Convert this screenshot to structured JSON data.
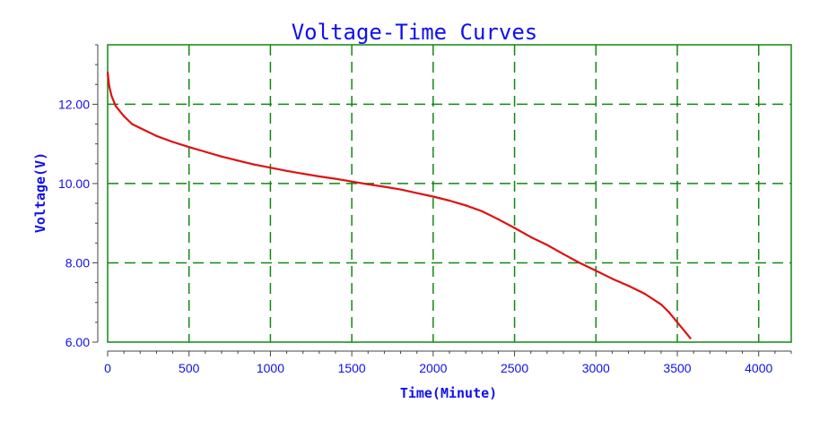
{
  "chart_data": {
    "type": "line",
    "title": "Voltage-Time Curves",
    "xlabel": "Time(Minute)",
    "ylabel": "Voltage(V)",
    "xlim": [
      0,
      4200
    ],
    "ylim": [
      6.0,
      13.5
    ],
    "x_ticks": [
      0,
      500,
      1000,
      1500,
      2000,
      2500,
      3000,
      3500,
      4000
    ],
    "x_tick_labels": [
      "0",
      "500",
      "1000",
      "1500",
      "2000",
      "2500",
      "3000",
      "3500",
      "4000"
    ],
    "y_ticks": [
      6,
      8,
      10,
      12
    ],
    "y_tick_labels": [
      "6.00",
      "8.00",
      "10.00",
      "12.00"
    ],
    "grid": true,
    "series": [
      {
        "x": [
          0,
          10,
          25,
          50,
          100,
          150,
          200,
          300,
          400,
          500,
          600,
          700,
          800,
          900,
          1000,
          1100,
          1200,
          1300,
          1400,
          1500,
          1600,
          1700,
          1800,
          1900,
          2000,
          2100,
          2200,
          2300,
          2400,
          2500,
          2600,
          2700,
          2800,
          2900,
          3000,
          3100,
          3200,
          3300,
          3400,
          3450,
          3500,
          3550,
          3580
        ],
        "y": [
          12.8,
          12.45,
          12.2,
          11.95,
          11.7,
          11.5,
          11.4,
          11.2,
          11.05,
          10.92,
          10.8,
          10.68,
          10.58,
          10.48,
          10.4,
          10.32,
          10.25,
          10.18,
          10.12,
          10.05,
          9.98,
          9.92,
          9.85,
          9.76,
          9.67,
          9.57,
          9.45,
          9.3,
          9.1,
          8.88,
          8.65,
          8.45,
          8.22,
          8.0,
          7.8,
          7.6,
          7.42,
          7.22,
          6.95,
          6.75,
          6.5,
          6.25,
          6.1
        ]
      }
    ],
    "colors": {
      "curve": "#e01010",
      "grid": "#118811",
      "frame": "#118811",
      "text": "#1010ee",
      "axis": "#444444"
    }
  }
}
